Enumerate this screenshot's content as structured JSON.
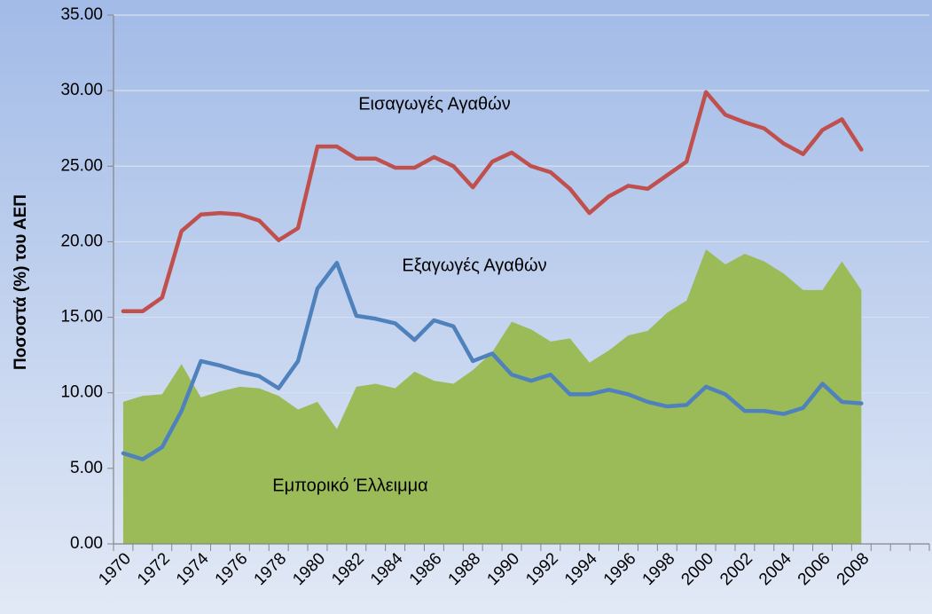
{
  "chart_data": {
    "type": "line-area",
    "y_axis_label": "Ποσοστά (%) του ΑΕΠ",
    "categories": [
      "1970",
      null,
      "1972",
      null,
      "1974",
      null,
      "1976",
      null,
      "1978",
      null,
      "1980",
      null,
      "1982",
      null,
      "1984",
      null,
      "1986",
      null,
      "1988",
      null,
      "1990",
      null,
      "1992",
      null,
      "1994",
      null,
      "1996",
      null,
      "1998",
      null,
      "2000",
      null,
      "2002",
      null,
      "2004",
      null,
      "2006",
      null,
      "2008",
      null,
      null,
      null
    ],
    "series": [
      {
        "name": "Εμπορικό Έλλειμμα",
        "kind": "area",
        "color": "#9bbb59",
        "values": [
          9.4,
          9.8,
          9.9,
          11.9,
          9.7,
          10.1,
          10.4,
          10.3,
          9.8,
          8.9,
          9.4,
          7.6,
          10.4,
          10.6,
          10.3,
          11.4,
          10.8,
          10.6,
          11.5,
          12.7,
          14.7,
          14.2,
          13.4,
          13.6,
          12.0,
          12.8,
          13.8,
          14.1,
          15.3,
          16.1,
          19.5,
          18.5,
          19.2,
          18.7,
          17.9,
          16.8,
          16.8,
          18.7,
          16.8,
          null,
          null,
          null
        ]
      },
      {
        "name": "Εισαγωγές Αγαθών",
        "kind": "line",
        "color": "#c0504d",
        "values": [
          15.4,
          15.4,
          16.3,
          20.7,
          21.8,
          21.9,
          21.8,
          21.4,
          20.1,
          20.9,
          26.3,
          26.3,
          25.5,
          25.5,
          24.9,
          24.9,
          25.6,
          25.0,
          23.6,
          25.3,
          25.9,
          25.0,
          24.6,
          23.5,
          21.9,
          23.0,
          23.7,
          23.5,
          24.4,
          25.3,
          29.9,
          28.4,
          27.9,
          27.5,
          26.5,
          25.8,
          27.4,
          28.1,
          26.1,
          null,
          null,
          null
        ]
      },
      {
        "name": "Εξαγωγές Αγαθών",
        "kind": "line",
        "color": "#4f81bd",
        "values": [
          6.0,
          5.6,
          6.4,
          8.8,
          12.1,
          11.8,
          11.4,
          11.1,
          10.3,
          12.1,
          16.9,
          18.6,
          15.1,
          14.9,
          14.6,
          13.5,
          14.8,
          14.4,
          12.1,
          12.6,
          11.2,
          10.8,
          11.2,
          9.9,
          9.9,
          10.2,
          9.9,
          9.4,
          9.1,
          9.2,
          10.4,
          9.9,
          8.8,
          8.8,
          8.6,
          9.0,
          10.6,
          9.4,
          9.3,
          null,
          null,
          null
        ]
      }
    ],
    "ylim": [
      0,
      35
    ],
    "yticks": [
      {
        "value": 0,
        "label": "0.00"
      },
      {
        "value": 5,
        "label": "5.00"
      },
      {
        "value": 10,
        "label": "10.00"
      },
      {
        "value": 15,
        "label": "15.00"
      },
      {
        "value": 20,
        "label": "20.00"
      },
      {
        "value": 25,
        "label": "25.00"
      },
      {
        "value": 30,
        "label": "30.00"
      },
      {
        "value": 35,
        "label": "35.00"
      }
    ],
    "grid": true
  }
}
